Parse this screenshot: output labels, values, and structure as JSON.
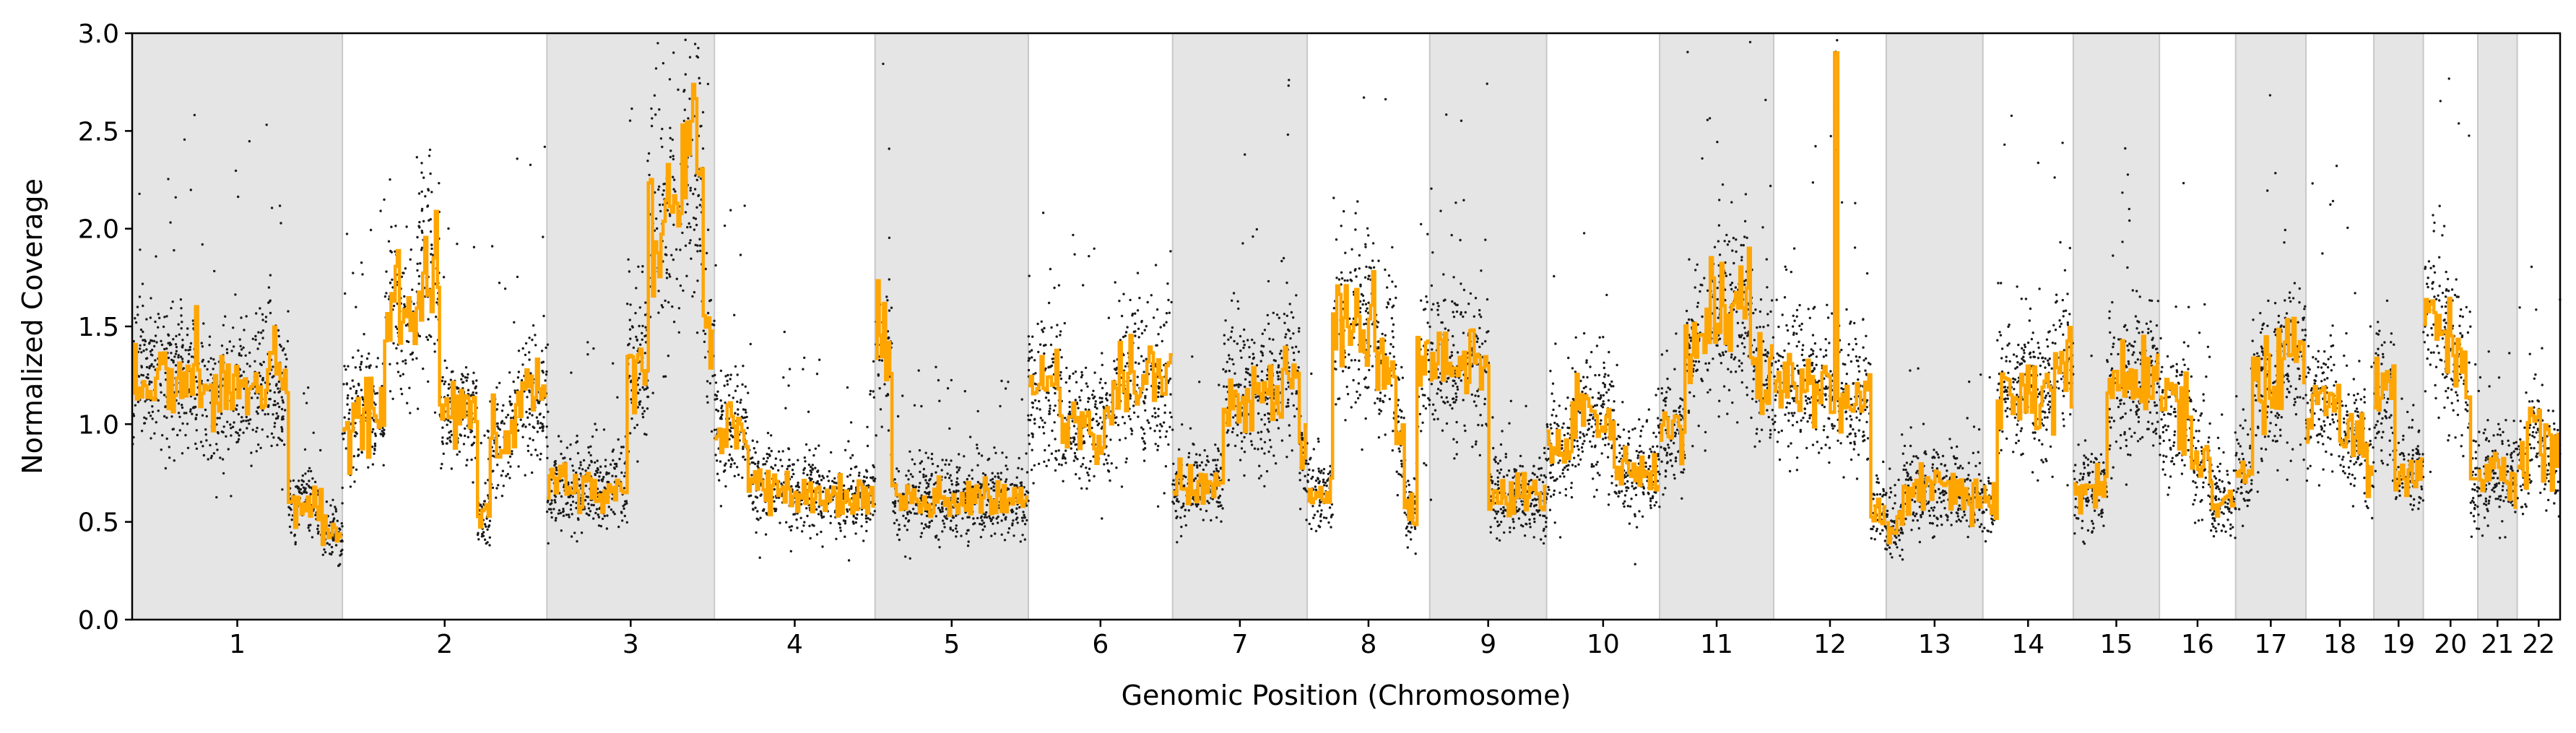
{
  "chart_data": {
    "type": "scatter",
    "title": "",
    "xlabel": "Genomic Position (Chromosome)",
    "ylabel": "Normalized Coverage",
    "ylim": [
      0.0,
      3.0
    ],
    "yticks": [
      "0.0",
      "0.5",
      "1.0",
      "1.5",
      "2.0",
      "2.5",
      "3.0"
    ],
    "grid": false,
    "legend": "none",
    "colors": {
      "points": "#1a1a1a",
      "segments": "#ffa500",
      "band_shade": "#e5e5e5",
      "band_border": "#c8c8c8"
    },
    "chromosomes": [
      {
        "label": "1",
        "start": 0.0,
        "end": 248.96,
        "shaded": true,
        "segments": [
          [
            0.0,
            1.25
          ],
          [
            80.0,
            1.17
          ],
          [
            120.0,
            1.18
          ],
          [
            143.0,
            1.2
          ],
          [
            185.0,
            0.6
          ],
          [
            225.0,
            0.45
          ]
        ]
      },
      {
        "label": "2",
        "start": 248.96,
        "end": 491.15,
        "shaded": false,
        "segments": [
          [
            0.0,
            1.05
          ],
          [
            50.0,
            1.55
          ],
          [
            90.0,
            1.85
          ],
          [
            115.0,
            1.05
          ],
          [
            160.0,
            0.55
          ],
          [
            175.0,
            0.95
          ],
          [
            205.0,
            1.15
          ]
        ]
      },
      {
        "label": "3",
        "start": 491.15,
        "end": 689.45,
        "shaded": true,
        "segments": [
          [
            0.0,
            0.68
          ],
          [
            90.0,
            0.65
          ],
          [
            95.0,
            1.3
          ],
          [
            120.0,
            2.05
          ],
          [
            160.0,
            2.35
          ],
          [
            185.0,
            1.45
          ]
        ]
      },
      {
        "label": "4",
        "start": 689.45,
        "end": 879.67,
        "shaded": false,
        "segments": [
          [
            0.0,
            1.0
          ],
          [
            40.0,
            0.7
          ],
          [
            90.0,
            0.63
          ]
        ]
      },
      {
        "label": "5",
        "start": 879.67,
        "end": 1061.2,
        "shaded": true,
        "segments": [
          [
            0.0,
            1.35
          ],
          [
            20.0,
            0.62
          ]
        ]
      },
      {
        "label": "6",
        "start": 1061.2,
        "end": 1232.0,
        "shaded": false,
        "segments": [
          [
            0.0,
            1.18
          ],
          [
            40.0,
            0.98
          ],
          [
            100.0,
            1.23
          ]
        ]
      },
      {
        "label": "7",
        "start": 1232.0,
        "end": 1391.4,
        "shaded": true,
        "segments": [
          [
            0.0,
            0.68
          ],
          [
            60.0,
            1.15
          ],
          [
            130.0,
            1.3
          ],
          [
            150.0,
            0.85
          ]
        ]
      },
      {
        "label": "8",
        "start": 1391.4,
        "end": 1536.5,
        "shaded": false,
        "segments": [
          [
            0.0,
            0.65
          ],
          [
            30.0,
            1.55
          ],
          [
            80.0,
            1.3
          ],
          [
            105.0,
            0.95
          ],
          [
            115.0,
            0.55
          ],
          [
            130.0,
            1.3
          ]
        ]
      },
      {
        "label": "9",
        "start": 1536.5,
        "end": 1674.9,
        "shaded": true,
        "segments": [
          [
            0.0,
            1.3
          ],
          [
            70.0,
            0.62
          ]
        ]
      },
      {
        "label": "10",
        "start": 1674.9,
        "end": 1808.7,
        "shaded": false,
        "segments": [
          [
            0.0,
            0.85
          ],
          [
            30.0,
            1.05
          ],
          [
            80.0,
            0.75
          ]
        ]
      },
      {
        "label": "11",
        "start": 1808.7,
        "end": 1943.8,
        "shaded": true,
        "segments": [
          [
            0.0,
            0.95
          ],
          [
            30.0,
            1.4
          ],
          [
            60.0,
            1.6
          ],
          [
            110.0,
            1.25
          ]
        ]
      },
      {
        "label": "12",
        "start": 1943.8,
        "end": 2077.1,
        "shaded": false,
        "segments": [
          [
            0.0,
            1.2
          ],
          [
            72.0,
            2.9
          ],
          [
            76.0,
            1.15
          ],
          [
            115.0,
            0.55
          ]
        ]
      },
      {
        "label": "13",
        "start": 2077.1,
        "end": 2191.5,
        "shaded": true,
        "segments": [
          [
            0.0,
            0.48
          ],
          [
            20.0,
            0.65
          ],
          [
            98.0,
            0.6
          ]
        ]
      },
      {
        "label": "14",
        "start": 2191.5,
        "end": 2298.5,
        "shaded": false,
        "segments": [
          [
            0.0,
            0.6
          ],
          [
            17.0,
            1.2
          ],
          [
            60.0,
            1.15
          ],
          [
            80.0,
            1.33
          ]
        ]
      },
      {
        "label": "15",
        "start": 2298.5,
        "end": 2400.5,
        "shaded": true,
        "segments": [
          [
            0.0,
            0.65
          ],
          [
            40.0,
            1.2
          ]
        ]
      },
      {
        "label": "16",
        "start": 2400.5,
        "end": 2490.8,
        "shaded": false,
        "segments": [
          [
            0.0,
            1.05
          ],
          [
            38.0,
            0.8
          ],
          [
            60.0,
            0.6
          ]
        ]
      },
      {
        "label": "17",
        "start": 2490.8,
        "end": 2574.0,
        "shaded": true,
        "segments": [
          [
            0.0,
            0.75
          ],
          [
            20.0,
            1.25
          ],
          [
            50.0,
            1.35
          ]
        ]
      },
      {
        "label": "18",
        "start": 2574.0,
        "end": 2654.4,
        "shaded": false,
        "segments": [
          [
            0.0,
            1.1
          ],
          [
            40.0,
            0.95
          ],
          [
            70.0,
            0.8
          ]
        ]
      },
      {
        "label": "19",
        "start": 2654.4,
        "end": 2713.0,
        "shaded": true,
        "segments": [
          [
            0.0,
            1.15
          ],
          [
            25.0,
            0.75
          ]
        ]
      },
      {
        "label": "20",
        "start": 2713.0,
        "end": 2777.5,
        "shaded": false,
        "segments": [
          [
            0.0,
            1.6
          ],
          [
            25.0,
            1.35
          ],
          [
            45.0,
            1.2
          ],
          [
            56.0,
            0.72
          ]
        ]
      },
      {
        "label": "21",
        "start": 2777.5,
        "end": 2824.2,
        "shaded": true,
        "segments": [
          [
            0.0,
            0.72
          ]
        ]
      },
      {
        "label": "22",
        "start": 2824.2,
        "end": 2875.0,
        "shaded": false,
        "segments": [
          [
            0.0,
            0.75
          ],
          [
            12.0,
            1.0
          ],
          [
            30.0,
            0.85
          ]
        ]
      }
    ]
  }
}
